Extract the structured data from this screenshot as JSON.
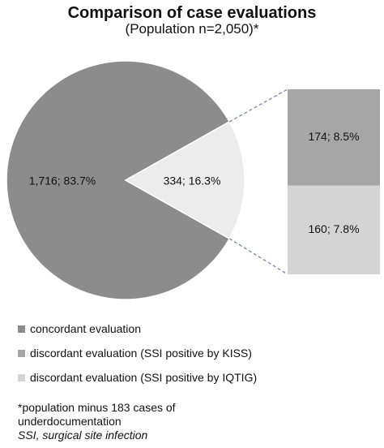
{
  "title": "Comparison of case evaluations",
  "subtitle": "(Population n=2,050)*",
  "colors": {
    "concordant": "#8c8c8c",
    "kiss": "#a6a6a6",
    "iqtig": "#d4d4d4",
    "connector": "#6f7f9f"
  },
  "chart_data": {
    "type": "pie",
    "title": "Comparison of case evaluations",
    "subtitle": "(Population n=2,050)*",
    "slices": [
      {
        "label": "concordant evaluation",
        "value": 1716,
        "percent": 83.7,
        "data_label": "1,716; 83.7%"
      },
      {
        "label": "discordant evaluation",
        "value": 334,
        "percent": 16.3,
        "data_label": "334; 16.3%"
      }
    ],
    "breakout": {
      "type": "stacked_bar",
      "segments": [
        {
          "label": "discordant evaluation (SSI positive by KISS)",
          "value": 174,
          "percent": 8.5,
          "data_label": "174; 8.5%"
        },
        {
          "label": "discordant evaluation (SSI positive by IQTIG)",
          "value": 160,
          "percent": 7.8,
          "data_label": "160; 7.8%"
        }
      ]
    },
    "legend_position": "bottom-left"
  },
  "legend": [
    {
      "label": "concordant evaluation",
      "color_key": "concordant"
    },
    {
      "label": "discordant evaluation (SSI positive by KISS)",
      "color_key": "kiss"
    },
    {
      "label": "discordant evaluation (SSI positive by IQTIG)",
      "color_key": "iqtig"
    }
  ],
  "footnote": {
    "line1": "*population minus 183 cases of",
    "line2": "underdocumentation",
    "line3": "SSI, surgical site infection"
  }
}
